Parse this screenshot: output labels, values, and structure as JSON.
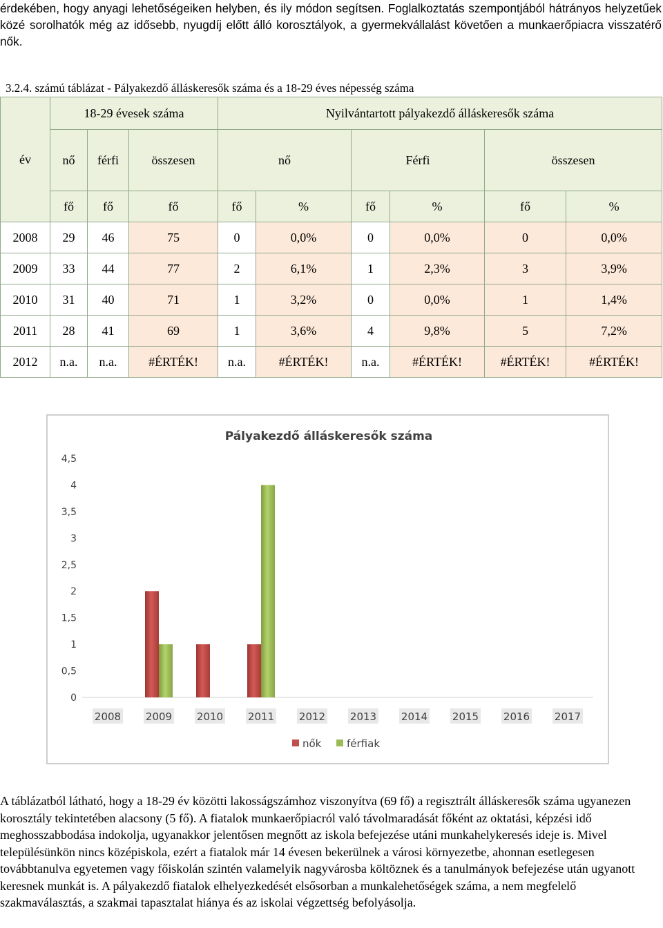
{
  "intro_text": "érdekében, hogy anyagi lehetőségeiken helyben, és ily módon segítsen. Foglalkoztatás szempontjából hátrányos helyzetűek közé sorolhatók még az idősebb, nyugdíj előtt álló korosztályok, a gyermekvállalást követően a munkaerőpiacra visszatérő nők.",
  "table": {
    "caption": "3.2.4. számú táblázat - Pályakezdő álláskeresők száma és a 18-29 éves népesség száma",
    "group_headers": [
      "18-29 évesek száma",
      "Nyilvántartott pályakezdő álláskeresők száma"
    ],
    "col_headers": [
      "év",
      "nő",
      "férfi",
      "összesen",
      "nő",
      "Férfi",
      "összesen"
    ],
    "unit_headers": [
      "fő",
      "fő",
      "fő",
      "fő",
      "%",
      "fő",
      "%",
      "fő",
      "%"
    ],
    "rows": [
      [
        "2008",
        "29",
        "46",
        "75",
        "0",
        "0,0%",
        "0",
        "0,0%",
        "0",
        "0,0%"
      ],
      [
        "2009",
        "33",
        "44",
        "77",
        "2",
        "6,1%",
        "1",
        "2,3%",
        "3",
        "3,9%"
      ],
      [
        "2010",
        "31",
        "40",
        "71",
        "1",
        "3,2%",
        "0",
        "0,0%",
        "1",
        "1,4%"
      ],
      [
        "2011",
        "28",
        "41",
        "69",
        "1",
        "3,6%",
        "4",
        "9,8%",
        "5",
        "7,2%"
      ],
      [
        "2012",
        "n.a.",
        "n.a.",
        "#ÉRTÉK!",
        "n.a.",
        "#ÉRTÉK!",
        "n.a.",
        "#ÉRTÉK!",
        "#ÉRTÉK!",
        "#ÉRTÉK!"
      ]
    ]
  },
  "chart_data": {
    "type": "bar",
    "title": "Pályakezdő álláskeresők száma",
    "categories": [
      "2008",
      "2009",
      "2010",
      "2011",
      "2012",
      "2013",
      "2014",
      "2015",
      "2016",
      "2017"
    ],
    "series": [
      {
        "name": "nők",
        "color": "#c0504d",
        "values": [
          0,
          2,
          1,
          1,
          null,
          null,
          null,
          null,
          null,
          null
        ]
      },
      {
        "name": "férfiak",
        "color": "#9bbb59",
        "values": [
          0,
          1,
          0,
          4,
          null,
          null,
          null,
          null,
          null,
          null
        ]
      }
    ],
    "ylim": [
      0,
      4.5
    ],
    "yticks": [
      "0",
      "0,5",
      "1",
      "1,5",
      "2",
      "2,5",
      "3",
      "3,5",
      "4",
      "4,5"
    ],
    "grid": false,
    "legend": "bottom"
  },
  "outro_text": "A táblázatból látható, hogy a 18-29 év közötti lakosságszámhoz viszonyítva (69 fő) a regisztrált álláskeresők száma ugyanezen korosztály tekintetében alacsony (5 fő). A fiatalok munkaerőpiacról való távolmaradását főként az oktatási, képzési idő meghosszabbodása indokolja, ugyanakkor jelentősen megnőtt az iskola befejezése utáni munkahelykeresés ideje is. Mivel településünkön nincs középiskola, ezért a fiatalok már 14 évesen bekerülnek a városi környezetbe, ahonnan esetlegesen továbbtanulva egyetemen vagy főiskolán szintén valamelyik nagyvárosba költöznek és a tanulmányok befejezése után ugyanott keresnek munkát is. A pályakezdő fiatalok elhelyezkedését elsősorban a munkalehetőségek száma, a nem megfelelő szakmaválasztás, a szakmai tapasztalat hiánya és az iskolai végzettség befolyásolja."
}
